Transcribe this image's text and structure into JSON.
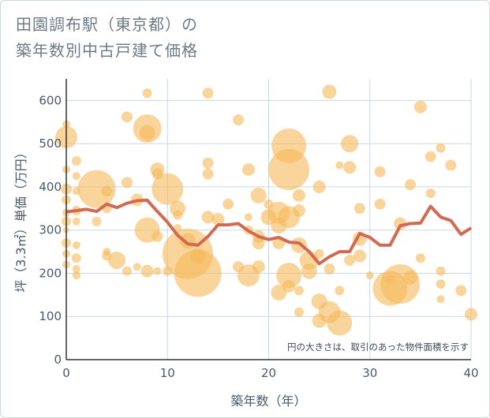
{
  "title_lines": [
    "田園調布駅（東京都）の",
    "築年数別中古戸建て価格"
  ],
  "chart_data": {
    "type": "scatter",
    "title": "田園調布駅（東京都）の築年数別中古戸建て価格",
    "xlabel": "築年数（年）",
    "ylabel": "坪（3.3㎡）単価（万円）",
    "xlim": [
      0,
      40
    ],
    "ylim": [
      0,
      650
    ],
    "xticks": [
      0,
      10,
      20,
      30,
      40
    ],
    "yticks": [
      0,
      100,
      200,
      300,
      400,
      500,
      600
    ],
    "grid": true,
    "note": "円の大きさは、取引のあった物件面積を示す",
    "colors": {
      "bubble": "#f5b95a",
      "line": "#d16a50",
      "grid": "#c9d7e3",
      "axis": "#333333"
    },
    "series": [
      {
        "kind": "bubble",
        "points": [
          {
            "x": 0,
            "y": 545,
            "s": 5
          },
          {
            "x": 0,
            "y": 515,
            "s": 14
          },
          {
            "x": 0,
            "y": 440,
            "s": 5
          },
          {
            "x": 0,
            "y": 395,
            "s": 7
          },
          {
            "x": 0,
            "y": 370,
            "s": 6
          },
          {
            "x": 0,
            "y": 340,
            "s": 5
          },
          {
            "x": 0,
            "y": 320,
            "s": 6
          },
          {
            "x": 0,
            "y": 300,
            "s": 4
          },
          {
            "x": 0,
            "y": 270,
            "s": 6
          },
          {
            "x": 0,
            "y": 245,
            "s": 5
          },
          {
            "x": 0,
            "y": 220,
            "s": 5
          },
          {
            "x": 1,
            "y": 460,
            "s": 6
          },
          {
            "x": 1,
            "y": 425,
            "s": 5
          },
          {
            "x": 1,
            "y": 390,
            "s": 5
          },
          {
            "x": 1,
            "y": 345,
            "s": 6
          },
          {
            "x": 1,
            "y": 320,
            "s": 5
          },
          {
            "x": 1,
            "y": 265,
            "s": 5
          },
          {
            "x": 1,
            "y": 235,
            "s": 6
          },
          {
            "x": 1,
            "y": 210,
            "s": 5
          },
          {
            "x": 1,
            "y": 195,
            "s": 5
          },
          {
            "x": 3,
            "y": 395,
            "s": 24
          },
          {
            "x": 3,
            "y": 320,
            "s": 6
          },
          {
            "x": 4,
            "y": 390,
            "s": 7
          },
          {
            "x": 4,
            "y": 350,
            "s": 6
          },
          {
            "x": 4,
            "y": 250,
            "s": 5
          },
          {
            "x": 4,
            "y": 240,
            "s": 6
          },
          {
            "x": 5,
            "y": 230,
            "s": 11
          },
          {
            "x": 6,
            "y": 562,
            "s": 7
          },
          {
            "x": 6,
            "y": 410,
            "s": 7
          },
          {
            "x": 6,
            "y": 205,
            "s": 6
          },
          {
            "x": 7,
            "y": 370,
            "s": 8
          },
          {
            "x": 7,
            "y": 215,
            "s": 5
          },
          {
            "x": 8,
            "y": 617,
            "s": 6
          },
          {
            "x": 8,
            "y": 535,
            "s": 18
          },
          {
            "x": 8,
            "y": 525,
            "s": 10
          },
          {
            "x": 8,
            "y": 300,
            "s": 16
          },
          {
            "x": 8,
            "y": 205,
            "s": 8
          },
          {
            "x": 9,
            "y": 440,
            "s": 9
          },
          {
            "x": 9,
            "y": 430,
            "s": 7
          },
          {
            "x": 9,
            "y": 285,
            "s": 7
          },
          {
            "x": 9,
            "y": 205,
            "s": 5
          },
          {
            "x": 10,
            "y": 395,
            "s": 20
          },
          {
            "x": 10,
            "y": 205,
            "s": 6
          },
          {
            "x": 11,
            "y": 350,
            "s": 10
          },
          {
            "x": 11,
            "y": 335,
            "s": 6
          },
          {
            "x": 11,
            "y": 305,
            "s": 5
          },
          {
            "x": 12,
            "y": 245,
            "s": 32
          },
          {
            "x": 13,
            "y": 200,
            "s": 30
          },
          {
            "x": 12,
            "y": 275,
            "s": 10
          },
          {
            "x": 13,
            "y": 240,
            "s": 10
          },
          {
            "x": 14,
            "y": 617,
            "s": 7
          },
          {
            "x": 14,
            "y": 455,
            "s": 7
          },
          {
            "x": 14,
            "y": 430,
            "s": 7
          },
          {
            "x": 14,
            "y": 330,
            "s": 8
          },
          {
            "x": 15,
            "y": 325,
            "s": 8
          },
          {
            "x": 16,
            "y": 360,
            "s": 7
          },
          {
            "x": 17,
            "y": 555,
            "s": 7
          },
          {
            "x": 17,
            "y": 215,
            "s": 7
          },
          {
            "x": 18,
            "y": 440,
            "s": 8
          },
          {
            "x": 18,
            "y": 330,
            "s": 5
          },
          {
            "x": 18,
            "y": 300,
            "s": 6
          },
          {
            "x": 18,
            "y": 195,
            "s": 14
          },
          {
            "x": 19,
            "y": 380,
            "s": 10
          },
          {
            "x": 19,
            "y": 285,
            "s": 8
          },
          {
            "x": 19,
            "y": 270,
            "s": 8
          },
          {
            "x": 19,
            "y": 215,
            "s": 8
          },
          {
            "x": 20,
            "y": 360,
            "s": 6
          },
          {
            "x": 20,
            "y": 330,
            "s": 10
          },
          {
            "x": 21,
            "y": 340,
            "s": 14
          },
          {
            "x": 21,
            "y": 310,
            "s": 10
          },
          {
            "x": 21,
            "y": 270,
            "s": 8
          },
          {
            "x": 21,
            "y": 155,
            "s": 10
          },
          {
            "x": 22,
            "y": 495,
            "s": 22
          },
          {
            "x": 22,
            "y": 440,
            "s": 26
          },
          {
            "x": 22,
            "y": 330,
            "s": 14
          },
          {
            "x": 22,
            "y": 195,
            "s": 16
          },
          {
            "x": 22,
            "y": 170,
            "s": 8
          },
          {
            "x": 23,
            "y": 380,
            "s": 8
          },
          {
            "x": 23,
            "y": 345,
            "s": 8
          },
          {
            "x": 23,
            "y": 265,
            "s": 10
          },
          {
            "x": 23,
            "y": 160,
            "s": 6
          },
          {
            "x": 23,
            "y": 110,
            "s": 6
          },
          {
            "x": 24,
            "y": 230,
            "s": 12
          },
          {
            "x": 24,
            "y": 205,
            "s": 10
          },
          {
            "x": 25,
            "y": 400,
            "s": 8
          },
          {
            "x": 25,
            "y": 245,
            "s": 6
          },
          {
            "x": 25,
            "y": 135,
            "s": 10
          },
          {
            "x": 25,
            "y": 90,
            "s": 9
          },
          {
            "x": 26,
            "y": 620,
            "s": 9
          },
          {
            "x": 26,
            "y": 210,
            "s": 7
          },
          {
            "x": 26,
            "y": 110,
            "s": 14
          },
          {
            "x": 27,
            "y": 450,
            "s": 5
          },
          {
            "x": 27,
            "y": 160,
            "s": 6
          },
          {
            "x": 27,
            "y": 85,
            "s": 16
          },
          {
            "x": 28,
            "y": 500,
            "s": 11
          },
          {
            "x": 28,
            "y": 445,
            "s": 8
          },
          {
            "x": 28,
            "y": 230,
            "s": 7
          },
          {
            "x": 29,
            "y": 350,
            "s": 7
          },
          {
            "x": 29,
            "y": 280,
            "s": 9
          },
          {
            "x": 29,
            "y": 240,
            "s": 8
          },
          {
            "x": 30,
            "y": 195,
            "s": 5
          },
          {
            "x": 31,
            "y": 435,
            "s": 7
          },
          {
            "x": 31,
            "y": 360,
            "s": 7
          },
          {
            "x": 32,
            "y": 165,
            "s": 22
          },
          {
            "x": 33,
            "y": 175,
            "s": 25
          },
          {
            "x": 32,
            "y": 185,
            "s": 6
          },
          {
            "x": 33,
            "y": 315,
            "s": 8
          },
          {
            "x": 34,
            "y": 405,
            "s": 7
          },
          {
            "x": 34,
            "y": 190,
            "s": 9
          },
          {
            "x": 35,
            "y": 585,
            "s": 8
          },
          {
            "x": 35,
            "y": 235,
            "s": 6
          },
          {
            "x": 36,
            "y": 470,
            "s": 7
          },
          {
            "x": 36,
            "y": 385,
            "s": 6
          },
          {
            "x": 37,
            "y": 490,
            "s": 6
          },
          {
            "x": 37,
            "y": 205,
            "s": 6
          },
          {
            "x": 37,
            "y": 175,
            "s": 6
          },
          {
            "x": 37,
            "y": 140,
            "s": 5
          },
          {
            "x": 38,
            "y": 450,
            "s": 7
          },
          {
            "x": 39,
            "y": 160,
            "s": 7
          },
          {
            "x": 40,
            "y": 105,
            "s": 8
          }
        ]
      },
      {
        "kind": "line",
        "x": [
          0,
          1,
          2,
          3,
          4,
          5,
          6,
          7,
          8,
          9,
          10,
          11,
          12,
          13,
          14,
          15,
          16,
          17,
          18,
          19,
          20,
          21,
          22,
          23,
          24,
          25,
          26,
          27,
          28,
          29,
          30,
          31,
          32,
          33,
          34,
          35,
          36,
          37,
          38,
          39,
          40
        ],
        "y": [
          342,
          345,
          348,
          343,
          360,
          352,
          362,
          368,
          369,
          343,
          318,
          288,
          268,
          265,
          285,
          312,
          312,
          315,
          298,
          285,
          278,
          283,
          272,
          270,
          250,
          222,
          238,
          250,
          250,
          292,
          283,
          265,
          265,
          310,
          315,
          316,
          355,
          330,
          322,
          290,
          305
        ]
      }
    ]
  }
}
